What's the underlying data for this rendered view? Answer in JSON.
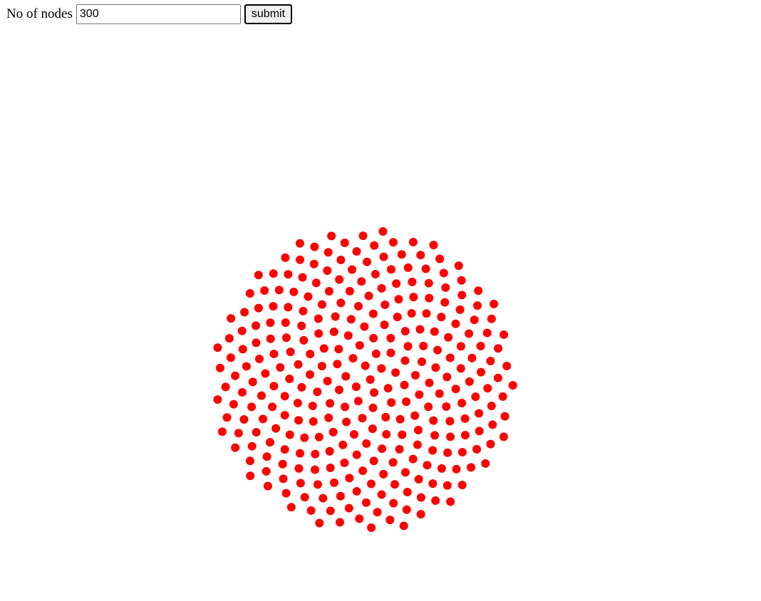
{
  "form": {
    "label": "No of nodes",
    "input_value": "300",
    "submit_label": "submit"
  },
  "visualization": {
    "node_count": 300,
    "node_color": "#ff0000",
    "background": "#ffffff",
    "pattern": "phyllotaxis"
  }
}
